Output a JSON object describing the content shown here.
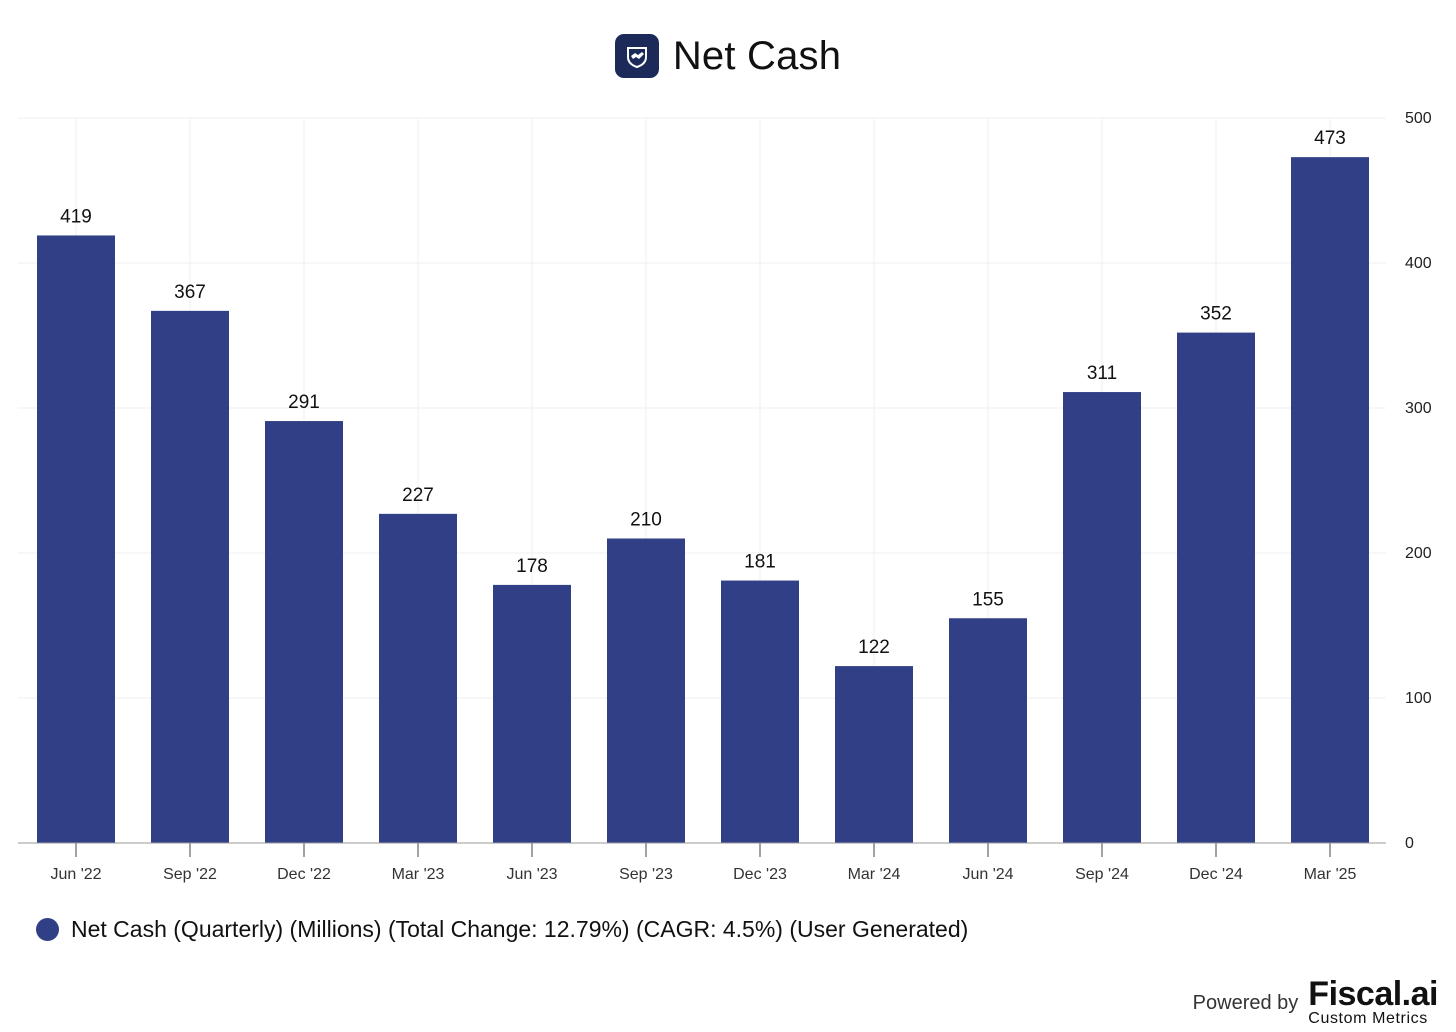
{
  "header": {
    "title": "Net Cash",
    "logo_icon": "handshake-shield-icon"
  },
  "colors": {
    "bar": "#303F86",
    "grid": "#EFEFEF",
    "logo_bg": "#1C2A5A"
  },
  "chart_data": {
    "type": "bar",
    "title": "Net Cash",
    "categories": [
      "Jun '22",
      "Sep '22",
      "Dec '22",
      "Mar '23",
      "Jun '23",
      "Sep '23",
      "Dec '23",
      "Mar '24",
      "Jun '24",
      "Sep '24",
      "Dec '24",
      "Mar '25"
    ],
    "series": [
      {
        "name": "Net Cash (Quarterly) (Millions) (Total Change: 12.79%) (CAGR: 4.5%) (User Generated)",
        "values": [
          419,
          367,
          291,
          227,
          178,
          210,
          181,
          122,
          155,
          311,
          352,
          473
        ]
      }
    ],
    "yticks": [
      0,
      100,
      200,
      300,
      400,
      500
    ],
    "ylim": [
      0,
      500
    ],
    "y_axis_side": "right",
    "grid": true,
    "xlabel": "",
    "ylabel": "",
    "legend": "bottom-left"
  },
  "legend": {
    "label": "Net Cash (Quarterly) (Millions) (Total Change: 12.79%) (CAGR: 4.5%) (User Generated)"
  },
  "footer": {
    "powered_by": "Powered by",
    "brand": "Fiscal.ai",
    "brand_sub": "Custom Metrics"
  }
}
